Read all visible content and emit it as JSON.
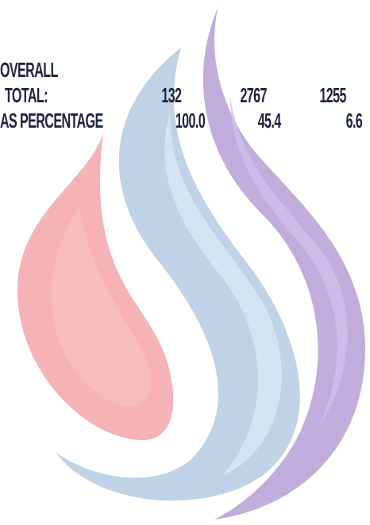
{
  "heading": "OVERALL",
  "rows": [
    {
      "label": "TOTAL:",
      "cells": [
        "132",
        "2767",
        "1255"
      ]
    },
    {
      "label": "AS PERCENTAGE",
      "cells": [
        "100.0",
        "45.4",
        "6.6"
      ]
    }
  ]
}
